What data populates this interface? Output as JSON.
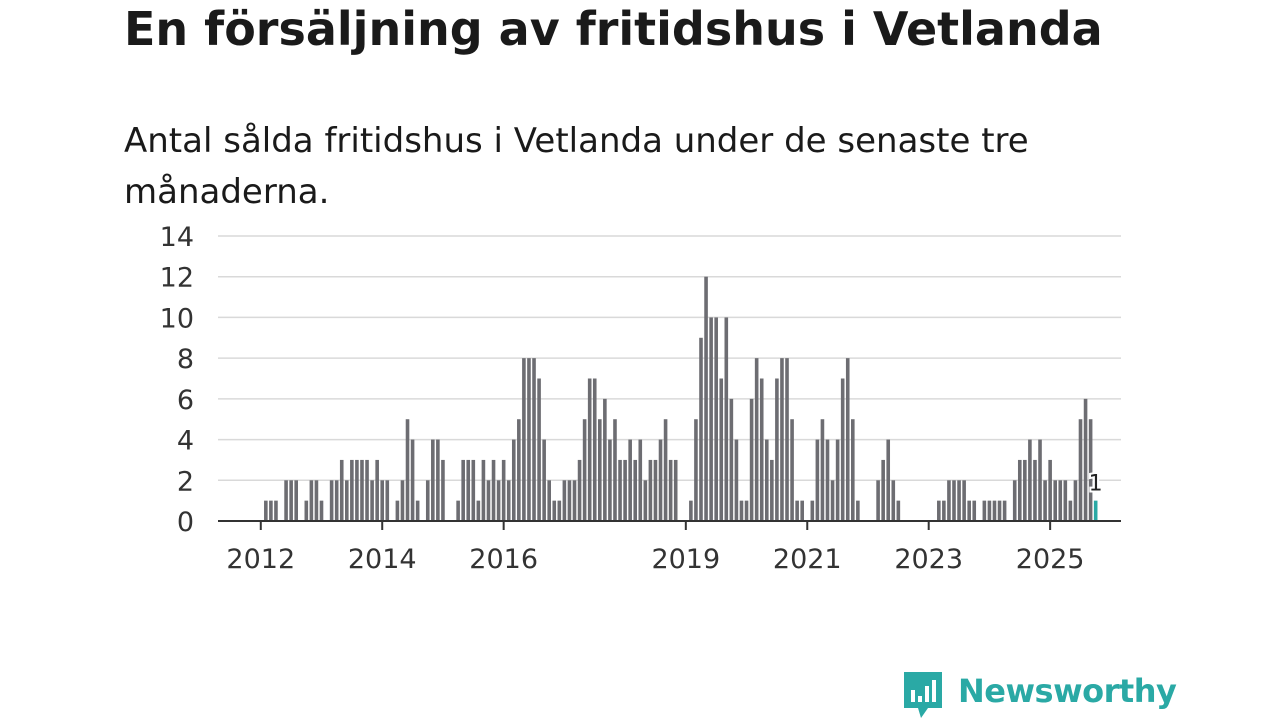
{
  "header": {
    "title": "En försäljning av fritidshus i Vetlanda",
    "subtitle": "Antal sålda fritidshus i Vetlanda under de senaste tre månaderna."
  },
  "logo": {
    "text": "Newsworthy",
    "icon": "newsworthy-logo-icon",
    "color": "#2aa9a5"
  },
  "chart_data": {
    "type": "bar",
    "title": "En försäljning av fritidshus i Vetlanda",
    "subtitle": "Antal sålda fritidshus i Vetlanda under de senaste tre månaderna.",
    "xlabel": "",
    "ylabel": "",
    "ylim": [
      0,
      14
    ],
    "yticks": [
      0,
      2,
      4,
      6,
      8,
      10,
      12,
      14
    ],
    "xtick_labels": [
      "2012",
      "2014",
      "2016",
      "2019",
      "2021",
      "2023",
      "2025"
    ],
    "xtick_months": [
      "2012-01",
      "2014-01",
      "2016-01",
      "2019-01",
      "2021-01",
      "2023-01",
      "2025-01"
    ],
    "grid": true,
    "legend": "none",
    "bar_color": "#6d6d72",
    "highlight_color": "#2aa9a5",
    "highlight_label": "1",
    "start_month": "2011-05",
    "end_month": "2025-10",
    "values": [
      0,
      0,
      0,
      0,
      0,
      0,
      0,
      0,
      0,
      1,
      1,
      1,
      0,
      2,
      2,
      2,
      0,
      1,
      2,
      2,
      1,
      0,
      2,
      2,
      3,
      2,
      3,
      3,
      3,
      3,
      2,
      3,
      2,
      2,
      0,
      1,
      2,
      5,
      4,
      1,
      0,
      2,
      4,
      4,
      3,
      0,
      0,
      1,
      3,
      3,
      3,
      1,
      3,
      2,
      3,
      2,
      3,
      2,
      4,
      5,
      8,
      8,
      8,
      7,
      4,
      2,
      1,
      1,
      2,
      2,
      2,
      3,
      5,
      7,
      7,
      5,
      6,
      4,
      5,
      3,
      3,
      4,
      3,
      4,
      2,
      3,
      3,
      4,
      5,
      3,
      3,
      0,
      0,
      1,
      5,
      9,
      12,
      10,
      10,
      7,
      10,
      6,
      4,
      1,
      1,
      6,
      8,
      7,
      4,
      3,
      7,
      8,
      8,
      5,
      1,
      1,
      0,
      1,
      4,
      5,
      4,
      2,
      4,
      7,
      8,
      5,
      1,
      0,
      0,
      0,
      2,
      3,
      4,
      2,
      1,
      0,
      0,
      0,
      0,
      0,
      0,
      0,
      1,
      1,
      2,
      2,
      2,
      2,
      1,
      1,
      0,
      1,
      1,
      1,
      1,
      1,
      0,
      2,
      3,
      3,
      4,
      3,
      4,
      2,
      3,
      2,
      2,
      2,
      1,
      2,
      5,
      6,
      5,
      1
    ]
  }
}
